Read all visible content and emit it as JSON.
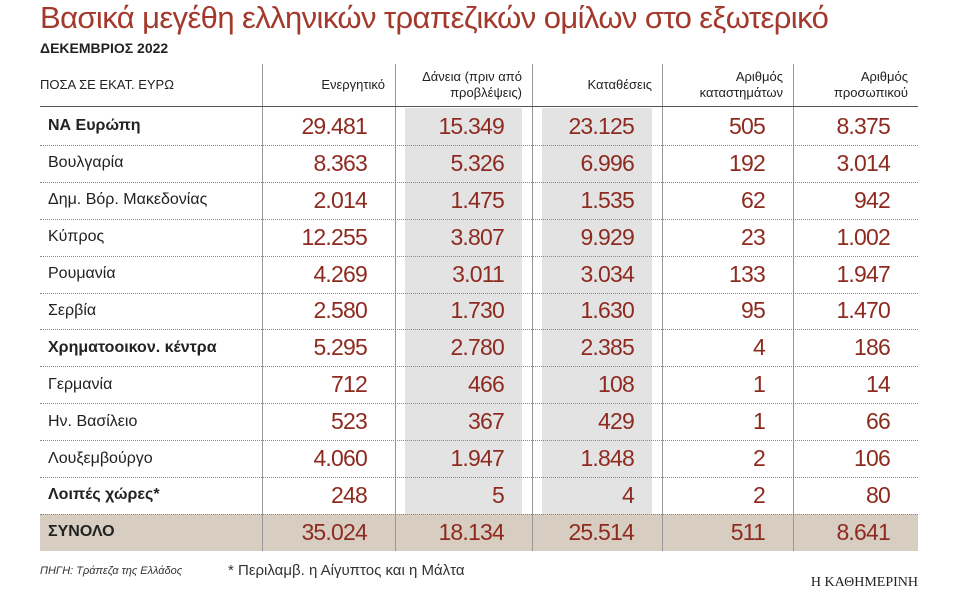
{
  "title": "Βασικά μεγέθη ελληνικών τραπεζικών ομίλων στο εξωτερικό",
  "subtitle": "ΔΕΚΕΜΒΡΙΟΣ 2022",
  "table": {
    "header": [
      "ΠΟΣΑ ΣΕ ΕΚΑΤ. ΕΥΡΩ",
      "Ενεργητικό",
      "Δάνεια (πριν από προβλέψεις)",
      "Καταθέσεις",
      "Αριθμός καταστημάτων",
      "Αριθμός προσωπικού"
    ],
    "shaded_columns": [
      2,
      3
    ],
    "rows": [
      {
        "label": "ΝΑ Ευρώπη",
        "values": [
          "29.481",
          "15.349",
          "23.125",
          "505",
          "8.375"
        ],
        "bold": true
      },
      {
        "label": "Βουλγαρία",
        "values": [
          "8.363",
          "5.326",
          "6.996",
          "192",
          "3.014"
        ]
      },
      {
        "label": "Δημ. Βόρ. Μακεδονίας",
        "values": [
          "2.014",
          "1.475",
          "1.535",
          "62",
          "942"
        ]
      },
      {
        "label": "Κύπρος",
        "values": [
          "12.255",
          "3.807",
          "9.929",
          "23",
          "1.002"
        ]
      },
      {
        "label": "Ρουμανία",
        "values": [
          "4.269",
          "3.011",
          "3.034",
          "133",
          "1.947"
        ]
      },
      {
        "label": "Σερβία",
        "values": [
          "2.580",
          "1.730",
          "1.630",
          "95",
          "1.470"
        ]
      },
      {
        "label": "Χρηματοοικον. κέντρα",
        "values": [
          "5.295",
          "2.780",
          "2.385",
          "4",
          "186"
        ],
        "bold": true
      },
      {
        "label": "Γερμανία",
        "values": [
          "712",
          "466",
          "108",
          "1",
          "14"
        ]
      },
      {
        "label": "Ην. Βασίλειο",
        "values": [
          "523",
          "367",
          "429",
          "1",
          "66"
        ]
      },
      {
        "label": "Λουξεμβούργο",
        "values": [
          "4.060",
          "1.947",
          "1.848",
          "2",
          "106"
        ]
      },
      {
        "label": "Λοιπές χώρες*",
        "values": [
          "248",
          "5",
          "4",
          "2",
          "80"
        ],
        "bold": true
      },
      {
        "label": "ΣΥΝΟΛΟ",
        "values": [
          "35.024",
          "18.134",
          "25.514",
          "511",
          "8.641"
        ],
        "bold": true,
        "highlight": true
      }
    ]
  },
  "source": "ΠΗΓΗ: Τράπεζα της Ελλάδος",
  "footnote": "* Περιλαμβ. η Αίγυπτος και η Μάλτα",
  "brand": "Η ΚΑΘΗΜΕΡΙΝΗ"
}
